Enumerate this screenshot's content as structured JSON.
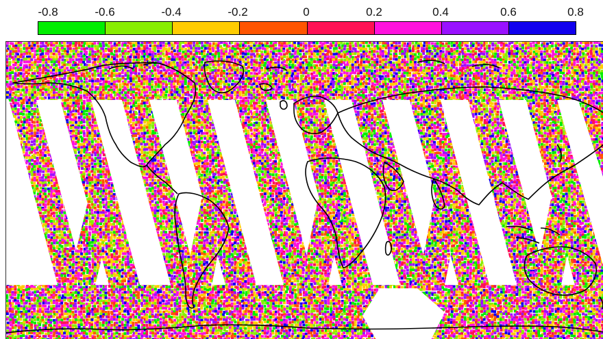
{
  "colorbar": {
    "tick_labels": [
      "-0.8",
      "-0.6",
      "-0.4",
      "-0.2",
      "0",
      "0.2",
      "0.4",
      "0.6",
      "0.8"
    ],
    "colors": [
      "#00ee00",
      "#88ee00",
      "#ffcc00",
      "#ff5500",
      "#ff1155",
      "#ff11dd",
      "#9911ff",
      "#1100ee"
    ]
  },
  "map": {
    "projection": "equirectangular",
    "background": "#ffffff",
    "coastline_color": "#000000",
    "swath_count": 10
  }
}
